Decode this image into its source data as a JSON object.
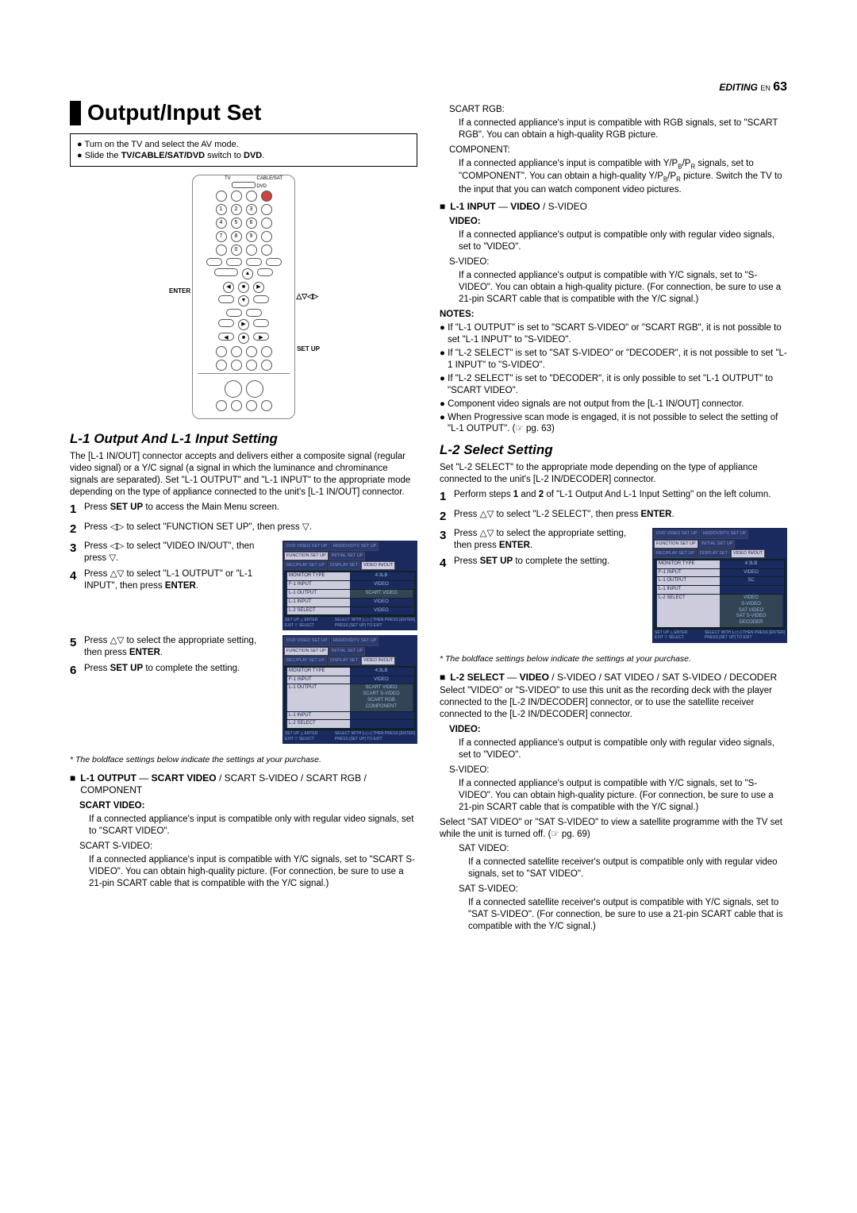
{
  "header": {
    "editing": "EDITING",
    "en": "EN",
    "pageNumber": "63"
  },
  "title": "Output/Input Set",
  "instructionBox": {
    "line1": "Turn on the TV and select the AV mode.",
    "line2_pre": "Slide the ",
    "line2_bold": "TV/CABLE/SAT/DVD",
    "line2_mid": " switch to ",
    "line2_bold2": "DVD",
    "line2_end": "."
  },
  "remote": {
    "labels": {
      "enter": "ENTER",
      "setup": "SET UP",
      "arrows": "△▽◁▷",
      "tv": "TV",
      "dvd": "DVD",
      "cablesat": "CABLE/SAT"
    }
  },
  "l1": {
    "title": "L-1 Output And L-1 Input Setting",
    "intro": "The [L-1 IN/OUT] connector accepts and delivers either a composite signal (regular video signal) or a Y/C signal (a signal in which the luminance and chrominance signals are separated). Set \"L-1 OUTPUT\" and \"L-1 INPUT\" to the appropriate mode depending on the type of appliance connected to the unit's [L-1 IN/OUT] connector.",
    "steps": {
      "s1_a": "Press ",
      "s1_b": "SET UP",
      "s1_c": " to access the Main Menu screen.",
      "s2_a": "Press ",
      "s2_arr": "◁▷",
      "s2_b": " to select \"FUNCTION SET UP\", then press ",
      "s2_arr2": "▽",
      "s2_c": ".",
      "s3_a": "Press ",
      "s3_arr": "◁▷",
      "s3_b": " to select \"VIDEO IN/OUT\", then press ",
      "s3_arr2": "▽",
      "s3_c": ".",
      "s4_a": "Press ",
      "s4_arr": "△▽",
      "s4_b": " to select \"L-1 OUTPUT\" or \"L-1 INPUT\", then press ",
      "s4_bold": "ENTER",
      "s4_c": ".",
      "s5_a": "Press ",
      "s5_arr": "△▽",
      "s5_b": " to select the appropriate setting, then press ",
      "s5_bold": "ENTER",
      "s5_c": ".",
      "s6_a": "Press ",
      "s6_bold": "SET UP",
      "s6_b": " to complete the setting."
    }
  },
  "menu1": {
    "tabs": [
      "DVD VIDEO SET UP",
      "HDD/DVD/TV SET UP",
      "FUNCTION SET UP",
      "INITIAL SET UP"
    ],
    "tabs2": [
      "REC/PLAY SET UP",
      "DISPLAY SET",
      "VIDEO IN/OUT"
    ],
    "rows": [
      {
        "k": "MONITOR TYPE",
        "v": "4:3LB"
      },
      {
        "k": "F-1 INPUT",
        "v": "VIDEO"
      },
      {
        "k": "L-1 OUTPUT",
        "v": "SCART VIDEO",
        "hl": true
      },
      {
        "k": "L-1 INPUT",
        "v": "VIDEO"
      },
      {
        "k": "L-2 SELECT",
        "v": "VIDEO"
      }
    ],
    "footer": {
      "l": "SET UP △ ENTER\nEXIT ▽ SELECT",
      "r": "SELECT WITH [◁ ▷] THEN PRESS [ENTER]\nPRESS [SET UP] TO EXIT"
    }
  },
  "menu2": {
    "rows": [
      {
        "k": "MONITOR TYPE",
        "v": "4:3LB"
      },
      {
        "k": "F-1 INPUT",
        "v": "VIDEO"
      },
      {
        "k": "L-1 OUTPUT",
        "v": "SCART VIDEO\nSCART S-VIDEO\nSCART RGB\nCOMPONENT",
        "hl": true
      },
      {
        "k": "L-1 INPUT",
        "v": ""
      },
      {
        "k": "L-2 SELECT",
        "v": ""
      }
    ]
  },
  "footnote": "* The boldface settings below indicate the settings at your purchase.",
  "l1output": {
    "label": "L-1 OUTPUT",
    "dash": "—",
    "defbold": "SCART VIDEO",
    "rest": " / SCART S-VIDEO / SCART RGB / COMPONENT",
    "opts": {
      "scartvideo": {
        "title": "SCART VIDEO:",
        "desc": "If a connected appliance's input is compatible only with regular video signals, set to \"SCART VIDEO\"."
      },
      "scartsvideo": {
        "title": "SCART S-VIDEO:",
        "desc": "If a connected appliance's input is compatible with Y/C signals, set to \"SCART S-VIDEO\". You can obtain high-quality picture. (For connection, be sure to use a 21-pin SCART cable that is compatible with the Y/C signal.)"
      },
      "scartrgb": {
        "title": "SCART RGB:",
        "desc": "If a connected appliance's input is compatible with RGB signals, set to \"SCART RGB\". You can obtain a high-quality RGB picture."
      },
      "component": {
        "title": "COMPONENT:",
        "desc_a": "If a connected appliance's input is compatible with Y/P",
        "desc_b": "/P",
        "desc_c": " signals, set to \"COMPONENT\". You can obtain a high-quality Y/P",
        "desc_d": "/P",
        "desc_e": " picture. Switch the TV to the input that you can watch component video pictures."
      }
    }
  },
  "l1input": {
    "label": "L-1 INPUT",
    "dash": "—",
    "defbold": "VIDEO",
    "rest": " / S-VIDEO",
    "opts": {
      "video": {
        "title": "VIDEO:",
        "desc": "If a connected appliance's output is compatible only with regular video signals, set to \"VIDEO\"."
      },
      "svideo": {
        "title": "S-VIDEO:",
        "desc": "If a connected appliance's output is compatible with Y/C signals, set to \"S-VIDEO\". You can obtain a high-quality picture. (For connection, be sure to use a 21-pin SCART cable that is compatible with the Y/C signal.)"
      }
    }
  },
  "notes": {
    "title": "NOTES:",
    "items": [
      "If \"L-1 OUTPUT\" is set to \"SCART S-VIDEO\" or \"SCART RGB\", it is not possible to set \"L-1 INPUT\" to \"S-VIDEO\".",
      "If \"L-2 SELECT\" is set to \"SAT S-VIDEO\" or \"DECODER\", it is not possible to set \"L-1 INPUT\" to \"S-VIDEO\".",
      "If \"L-2 SELECT\" is set to \"DECODER\", it is only possible to set \"L-1 OUTPUT\" to \"SCART VIDEO\".",
      "Component video signals are not output from the [L-1 IN/OUT] connector.",
      "When Progressive scan mode is engaged, it is not possible to select the setting of \"L-1 OUTPUT\". (☞ pg. 63)"
    ]
  },
  "l2": {
    "title": "L-2 Select Setting",
    "intro": "Set \"L-2 SELECT\" to the appropriate mode depending on the type of appliance connected to the unit's [L-2 IN/DECODER] connector.",
    "steps": {
      "s1_a": "Perform steps ",
      "s1_b1": "1",
      "s1_mid": " and ",
      "s1_b2": "2",
      "s1_c": " of \"L-1 Output And L-1 Input Setting\" on the left column.",
      "s2_a": "Press ",
      "s2_arr": "△▽",
      "s2_b": " to select \"L-2 SELECT\", then press ",
      "s2_bold": "ENTER",
      "s2_c": ".",
      "s3_a": "Press ",
      "s3_arr": "△▽",
      "s3_b": " to select the appropriate setting, then press ",
      "s3_bold": "ENTER",
      "s3_c": ".",
      "s4_a": "Press ",
      "s4_bold": "SET UP",
      "s4_b": " to complete the setting."
    }
  },
  "menu3": {
    "rows": [
      {
        "k": "MONITOR TYPE",
        "v": "4:3LB"
      },
      {
        "k": "F-1 INPUT",
        "v": "VIDEO"
      },
      {
        "k": "L-1 OUTPUT",
        "v": "SC"
      },
      {
        "k": "L-1 INPUT",
        "v": ""
      },
      {
        "k": "L-2 SELECT",
        "v": "VIDEO\nS-VIDEO\nSAT VIDEO\nSAT S-VIDEO\nDECODER",
        "hl": true
      }
    ]
  },
  "l2select": {
    "label": "L-2 SELECT",
    "dash": "—",
    "defbold": "VIDEO",
    "rest": " / S-VIDEO / SAT VIDEO / SAT S-VIDEO / DECODER",
    "intro": "Select \"VIDEO\" or \"S-VIDEO\" to use this unit as the recording deck with the player connected to the [L-2 IN/DECODER] connector, or to use the satellite receiver connected to the [L-2 IN/DECODER] connector.",
    "opts": {
      "video": {
        "title": "VIDEO:",
        "desc": "If a connected appliance's output is compatible only with regular video signals, set to \"VIDEO\"."
      },
      "svideo": {
        "title": "S-VIDEO:",
        "desc": "If a connected appliance's output is compatible with Y/C signals, set to \"S-VIDEO\". You can obtain high-quality picture. (For connection, be sure to use a 21-pin SCART cable that is compatible with the Y/C signal.)"
      }
    },
    "satintro": "Select \"SAT VIDEO\" or \"SAT S-VIDEO\" to view a satellite programme with the TV set while the unit is turned off. (☞ pg. 69)",
    "satopts": {
      "satvideo": {
        "title": "SAT VIDEO:",
        "desc": "If a connected satellite receiver's output is compatible only with regular video signals, set to \"SAT VIDEO\"."
      },
      "satsvideo": {
        "title": "SAT S-VIDEO:",
        "desc": "If a connected satellite receiver's output is compatible with Y/C signals, set to \"SAT S-VIDEO\". (For connection, be sure to use a 21-pin SCART cable that is compatible with the Y/C signal.)"
      }
    }
  }
}
